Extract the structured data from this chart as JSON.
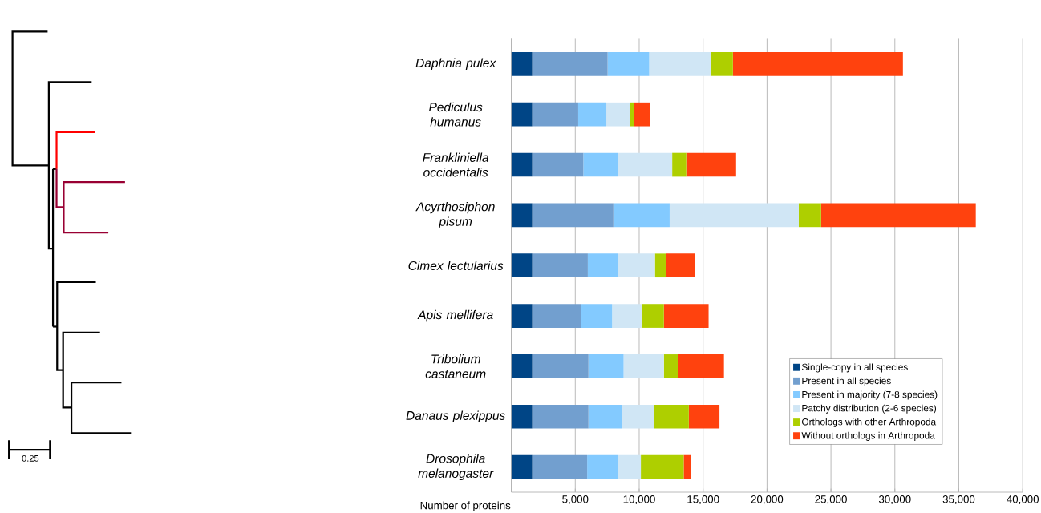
{
  "chart_data": {
    "type": "bar",
    "orientation": "horizontal",
    "stacked": true,
    "categories": [
      "Daphnia pulex",
      "Pediculus humanus",
      "Frankliniella occidentalis",
      "Acyrthosiphon pisum",
      "Cimex lectularius",
      "Apis mellifera",
      "Tribolium castaneum",
      "Danaus plexippus",
      "Drosophila melanogaster"
    ],
    "series": [
      {
        "name": "Single-copy in all species",
        "color": "#004586",
        "values": [
          1630,
          1630,
          1630,
          1630,
          1630,
          1630,
          1630,
          1630,
          1630
        ]
      },
      {
        "name": "Present in all species",
        "color": "#729fcf",
        "values": [
          5900,
          3600,
          4000,
          6350,
          4350,
          3800,
          4400,
          4400,
          4300
        ]
      },
      {
        "name": "Present in majority (7-8 species)",
        "color": "#83caff",
        "values": [
          3250,
          2200,
          2700,
          4400,
          2350,
          2450,
          2750,
          2650,
          2400
        ]
      },
      {
        "name": "Patchy distribution (2-6 species)",
        "color": "#d0e6f5",
        "values": [
          4800,
          1850,
          4250,
          10100,
          2900,
          2300,
          3150,
          2500,
          1800
        ]
      },
      {
        "name": "Orthologs with other Arthropoda",
        "color": "#aecf00",
        "values": [
          1750,
          300,
          1100,
          1750,
          900,
          1750,
          1100,
          2700,
          3350
        ]
      },
      {
        "name": "Without orthologs in Arthropoda",
        "color": "#ff420e",
        "values": [
          13300,
          1250,
          3900,
          12100,
          2200,
          3500,
          3600,
          2400,
          550
        ]
      }
    ],
    "xlabel": "Number of proteins",
    "xlim": [
      0,
      40000
    ],
    "xticks": [
      {
        "value": 0,
        "label": null
      },
      {
        "value": 5000,
        "label": "5,000"
      },
      {
        "value": 10000,
        "label": "10,000"
      },
      {
        "value": 15000,
        "label": "15,000"
      },
      {
        "value": 20000,
        "label": "20,000"
      },
      {
        "value": 25000,
        "label": "25,000"
      },
      {
        "value": 30000,
        "label": "30,000"
      },
      {
        "value": 35000,
        "label": "35,000"
      },
      {
        "value": 40000,
        "label": "40,000"
      }
    ],
    "grid": "x",
    "legend": "bottom right",
    "annotations": [
      "0.25"
    ]
  }
}
